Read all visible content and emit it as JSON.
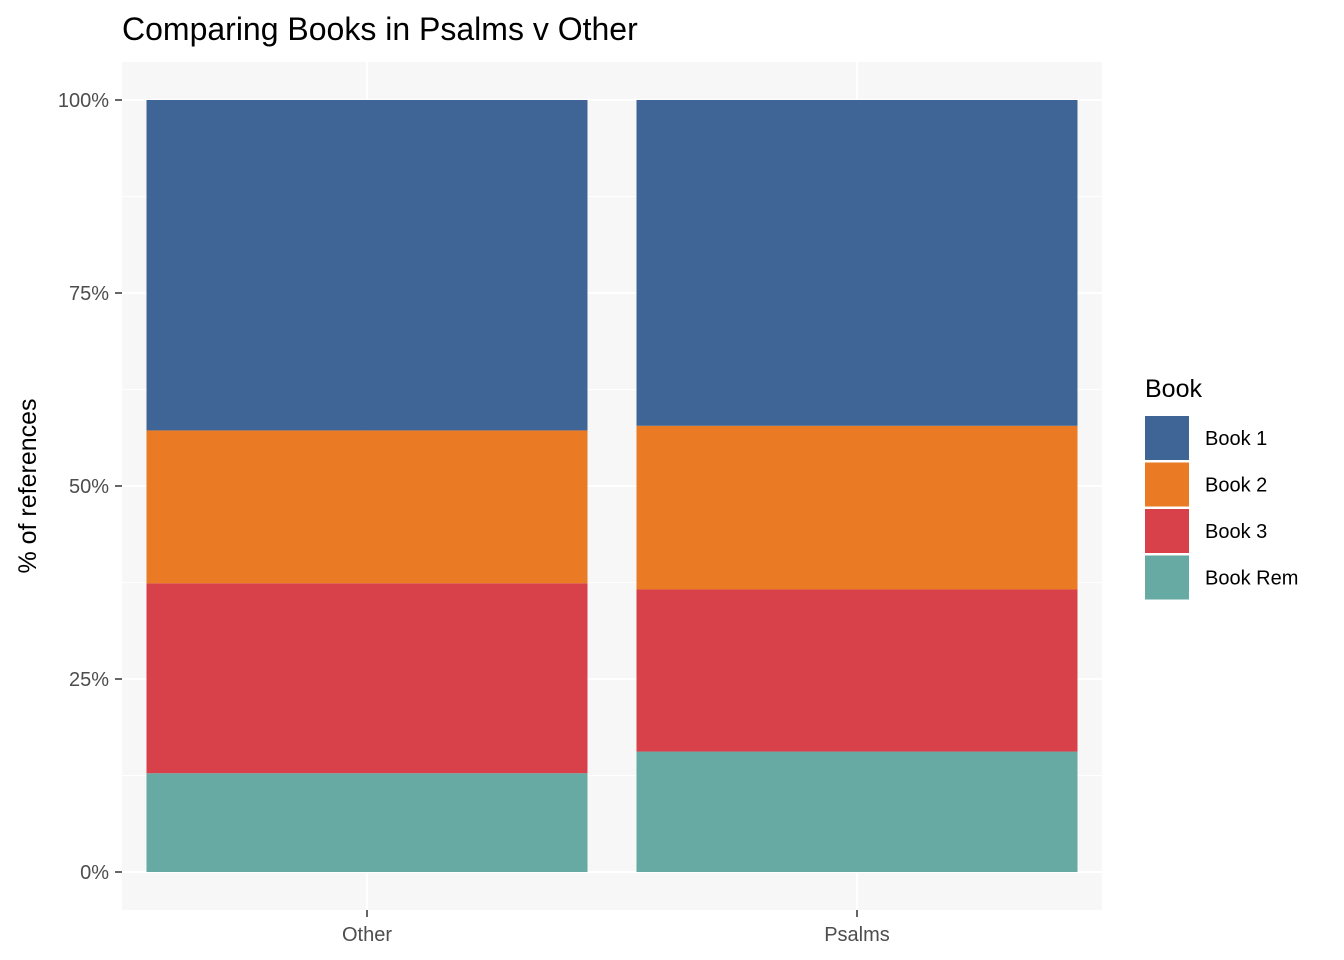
{
  "chart_data": {
    "type": "bar",
    "stacked": "percent",
    "title": "Comparing Books in Psalms v Other",
    "xlabel": "",
    "ylabel": "% of references",
    "categories": [
      "Other",
      "Psalms"
    ],
    "y_ticks": [
      "0%",
      "25%",
      "50%",
      "75%",
      "100%"
    ],
    "ylim": [
      0,
      1
    ],
    "grid": true,
    "legend_title": "Book",
    "legend_position": "right",
    "series": [
      {
        "name": "Book 1",
        "color": "#3f6496",
        "values": [
          0.428,
          0.422
        ]
      },
      {
        "name": "Book 2",
        "color": "#ea7a24",
        "values": [
          0.198,
          0.212
        ]
      },
      {
        "name": "Book 3",
        "color": "#d8404a",
        "values": [
          0.246,
          0.21
        ]
      },
      {
        "name": "Book Rem",
        "color": "#66aaa3",
        "values": [
          0.128,
          0.156
        ]
      }
    ]
  }
}
